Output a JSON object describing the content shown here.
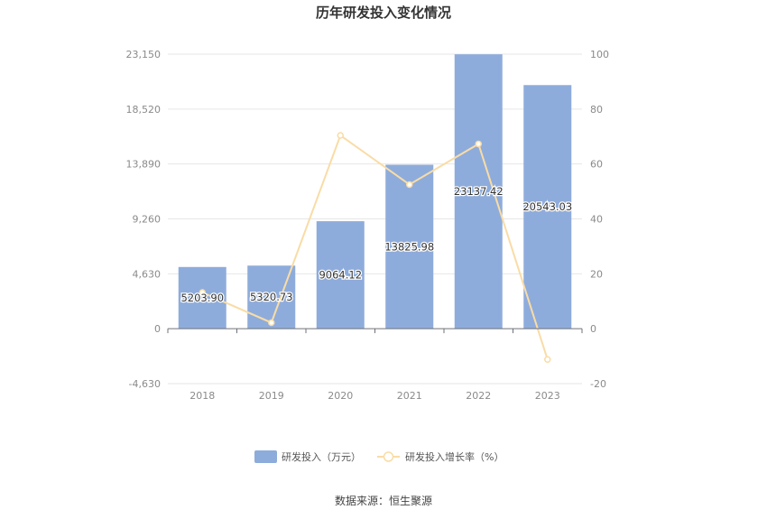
{
  "chart_data": {
    "type": "bar",
    "title": "历年研发投入变化情况",
    "categories": [
      "2018",
      "2019",
      "2020",
      "2021",
      "2022",
      "2023"
    ],
    "series": [
      {
        "name": "研发投入（万元）",
        "type": "bar",
        "axis": "left",
        "values": [
          5203.9,
          5320.73,
          9064.12,
          13825.98,
          23137.42,
          20543.03
        ],
        "labels": [
          "5203.90",
          "5320.73",
          "9064.12",
          "13825.98",
          "23137.42",
          "20543.03"
        ],
        "color": "#8eacdb"
      },
      {
        "name": "研发投入增长率（%）",
        "type": "line",
        "axis": "right",
        "values": [
          13.2,
          2.2,
          70.4,
          52.5,
          67.3,
          -11.2
        ],
        "color": "#f9dca6"
      }
    ],
    "y_left": {
      "ylim": [
        -4630,
        23150
      ],
      "ticks": [
        -4630,
        0,
        4630,
        9260,
        13890,
        18520,
        23150
      ],
      "tick_labels": [
        "-4,630",
        "0",
        "4,630",
        "9,260",
        "13,890",
        "18,520",
        "23,150"
      ]
    },
    "y_right": {
      "ylim": [
        -20,
        100
      ],
      "ticks": [
        -20,
        0,
        20,
        40,
        60,
        80,
        100
      ],
      "tick_labels": [
        "-20",
        "0",
        "20",
        "40",
        "60",
        "80",
        "100"
      ]
    },
    "grid": true,
    "legend_position": "bottom-center",
    "source": "数据来源：恒生聚源"
  }
}
